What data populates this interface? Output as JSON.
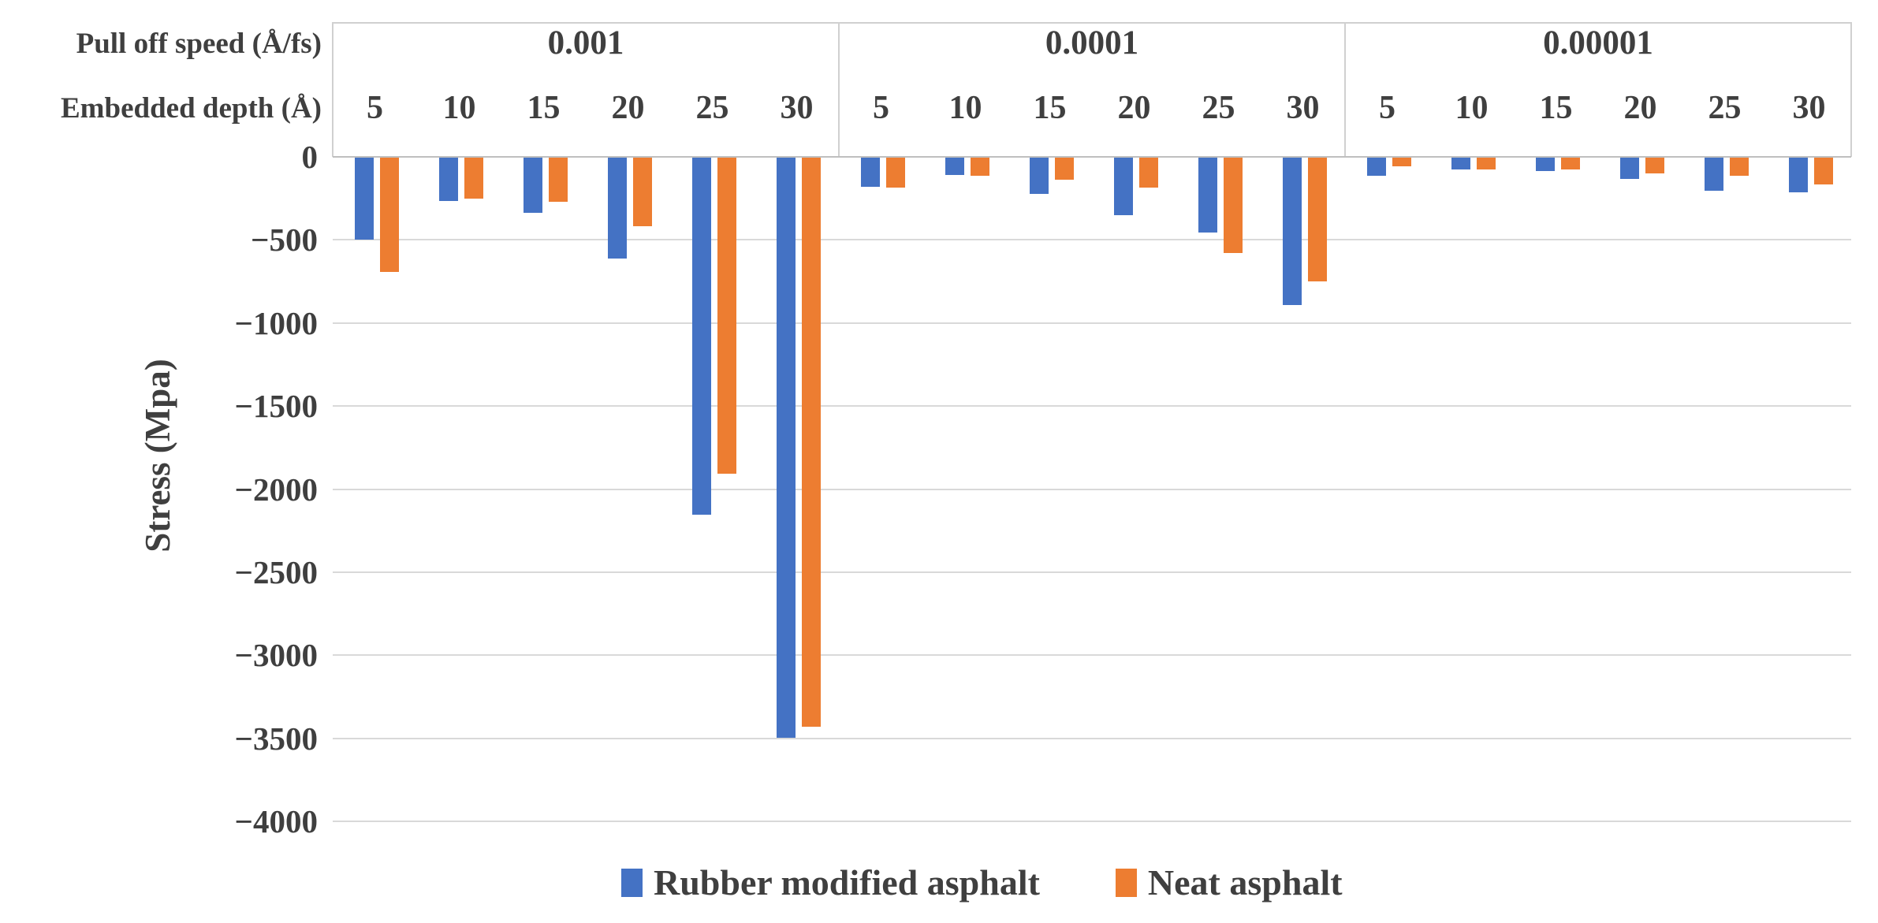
{
  "chart_data": {
    "type": "bar",
    "orientation": "vertical-negative",
    "title": "",
    "ylabel": "Stress (Mpa)",
    "header": {
      "speed_row_label": "Pull off speed (Å/fs)",
      "depth_row_label": "Embedded depth (Å)"
    },
    "depths": [
      "5",
      "10",
      "15",
      "20",
      "25",
      "30"
    ],
    "groups": [
      {
        "label": "0.001",
        "series": [
          {
            "name": "Rubber modified asphalt",
            "values": [
              -495,
              -260,
              -330,
              -605,
              -2150,
              -3490
            ]
          },
          {
            "name": "Neat asphalt",
            "values": [
              -690,
              -245,
              -265,
              -415,
              -1905,
              -3425
            ]
          }
        ]
      },
      {
        "label": "0.0001",
        "series": [
          {
            "name": "Rubber modified asphalt",
            "values": [
              -175,
              -105,
              -220,
              -345,
              -450,
              -885
            ]
          },
          {
            "name": "Neat asphalt",
            "values": [
              -180,
              -110,
              -135,
              -180,
              -575,
              -745
            ]
          }
        ]
      },
      {
        "label": "0.00001",
        "series": [
          {
            "name": "Rubber modified asphalt",
            "values": [
              -110,
              -70,
              -80,
              -130,
              -200,
              -210
            ]
          },
          {
            "name": "Neat asphalt",
            "values": [
              -50,
              -70,
              -70,
              -95,
              -110,
              -160
            ]
          }
        ]
      }
    ],
    "y_axis": {
      "min": -4000,
      "max": 0,
      "step": 500,
      "tick_labels": [
        "0",
        "−500",
        "−1000",
        "−1500",
        "−2000",
        "−2500",
        "−3000",
        "−3500",
        "−4000"
      ]
    },
    "legend": [
      {
        "label": "Rubber modified asphalt",
        "color": "#4472C4"
      },
      {
        "label": "Neat asphalt",
        "color": "#ED7D31"
      }
    ],
    "colors": {
      "rubber": "#4472C4",
      "neat": "#ED7D31",
      "gridline": "#D9D9D9",
      "zero_line": "#BFBFBF",
      "plot_border": "#D0D0D0",
      "text": "#3F3F3F"
    },
    "layout_hints": {
      "grid": true,
      "legend_position": "bottom",
      "groups_separated_by_vertical_lines": true
    }
  }
}
